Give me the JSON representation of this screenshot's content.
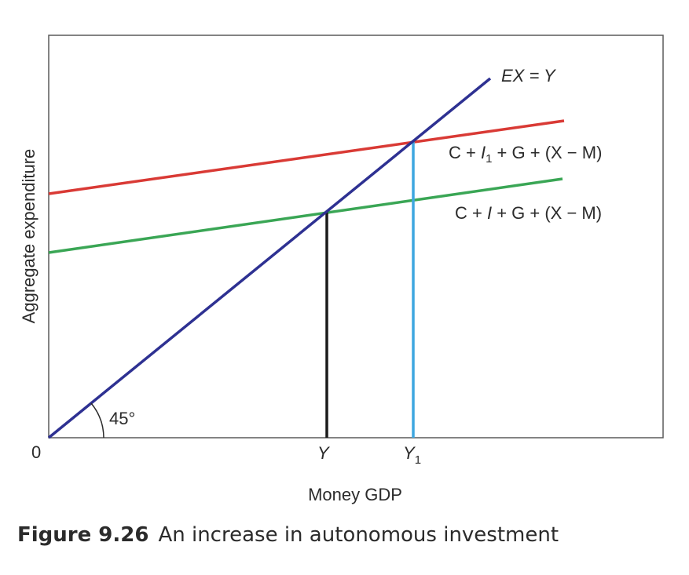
{
  "chart_data": {
    "type": "line",
    "xlabel": "Money GDP",
    "ylabel": "Aggregate expenditure",
    "origin_label": "0",
    "angle_label": "45°",
    "x_ticks": [
      {
        "text": "Y",
        "sub": ""
      },
      {
        "text": "Y",
        "sub": "1"
      }
    ],
    "series": [
      {
        "name": "EX = Y",
        "color": "#2e3192"
      },
      {
        "name": "C + I₁ + G + (X − M)",
        "color": "#d93a35"
      },
      {
        "name": "C + I + G + (X − M)",
        "color": "#3aa655"
      }
    ],
    "equilibria": [
      {
        "name": "Y",
        "color": "#1a1a1a"
      },
      {
        "name": "Y₁",
        "color": "#3ea7e0"
      }
    ],
    "grid": false
  },
  "caption": {
    "number": "Figure 9.26",
    "text": "An increase in autonomous investment"
  }
}
